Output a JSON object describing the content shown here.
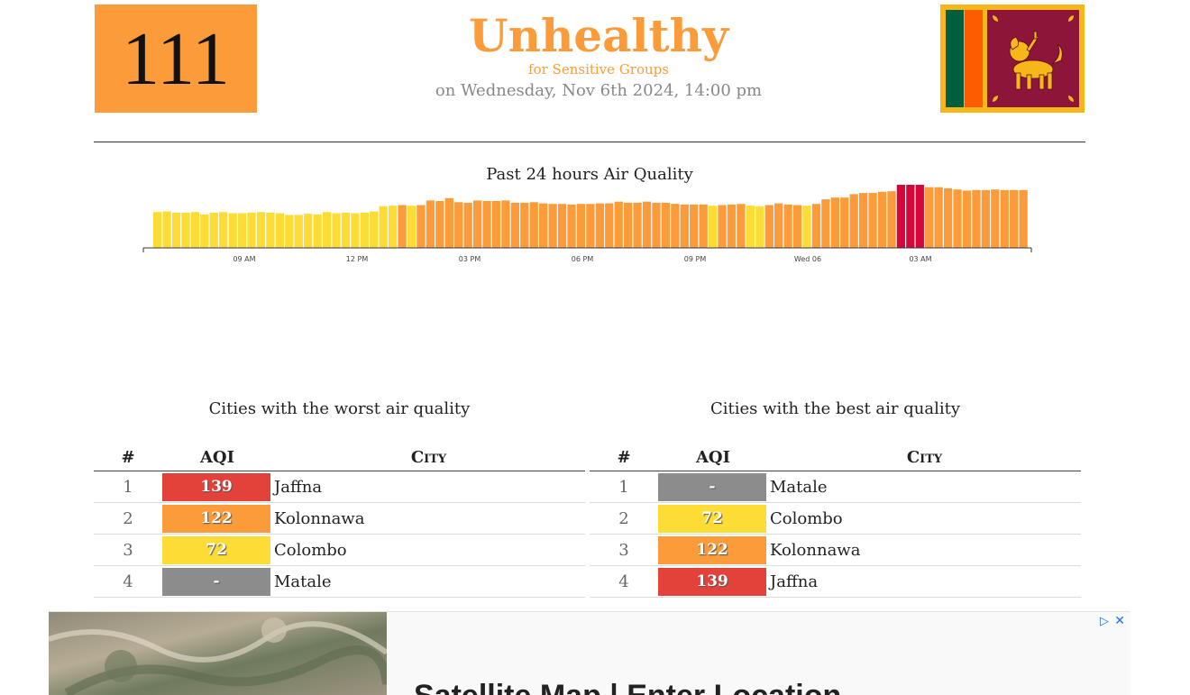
{
  "current": {
    "aqi": "111",
    "status": "Unhealthy",
    "status_sub": "for Sensitive Groups",
    "timestamp": "on Wednesday, Nov 6th 2024, 14:00 pm",
    "color": "#fb9b39"
  },
  "flag": {
    "icon": "sri-lanka-flag-icon",
    "colors": {
      "border": "#f7b718",
      "green": "#005f3f",
      "orange": "#ff5b00",
      "maroon": "#8d153a",
      "lion": "#f7b718"
    }
  },
  "chart_data": {
    "type": "bar",
    "title": "Past 24 hours Air Quality",
    "tick_labels": [
      "09 AM",
      "12 PM",
      "03 PM",
      "06 PM",
      "09 PM",
      "Wed 06",
      "03 AM"
    ],
    "values": [
      62,
      63,
      61,
      61,
      62,
      58,
      61,
      62,
      60,
      60,
      61,
      62,
      61,
      60,
      57,
      57,
      59,
      58,
      62,
      60,
      61,
      60,
      61,
      63,
      72,
      73,
      74,
      73,
      74,
      82,
      81,
      86,
      79,
      78,
      82,
      81,
      81,
      82,
      78,
      78,
      79,
      77,
      76,
      76,
      75,
      76,
      76,
      77,
      77,
      80,
      78,
      78,
      80,
      78,
      78,
      76,
      75,
      75,
      75,
      73,
      74,
      75,
      76,
      73,
      72,
      74,
      77,
      75,
      74,
      73,
      76,
      84,
      87,
      87,
      93,
      95,
      95,
      97,
      98,
      114,
      112,
      110,
      105,
      105,
      103,
      101,
      99,
      100,
      100,
      101,
      100,
      100,
      100
    ],
    "colors": {
      "moderate": "#fddd35",
      "usg": "#fb9b39",
      "unhealthy": "#d4063b"
    },
    "ylim": [
      0,
      120
    ]
  },
  "worst": {
    "title": "Cities with the worst air quality",
    "headers": {
      "rank": "#",
      "aqi": "AQI",
      "city": "City"
    },
    "rows": [
      {
        "rank": "1",
        "aqi": "139",
        "city": "Jaffna",
        "color": "#e2423a"
      },
      {
        "rank": "2",
        "aqi": "122",
        "city": "Kolonnawa",
        "color": "#fb9b39"
      },
      {
        "rank": "3",
        "aqi": "72",
        "city": "Colombo",
        "color": "#fddd35"
      },
      {
        "rank": "4",
        "aqi": "-",
        "city": "Matale",
        "color": "#8c8c8c"
      }
    ]
  },
  "best": {
    "title": "Cities with the best air quality",
    "headers": {
      "rank": "#",
      "aqi": "AQI",
      "city": "City"
    },
    "rows": [
      {
        "rank": "1",
        "aqi": "-",
        "city": "Matale",
        "color": "#8c8c8c"
      },
      {
        "rank": "2",
        "aqi": "72",
        "city": "Colombo",
        "color": "#fddd35"
      },
      {
        "rank": "3",
        "aqi": "122",
        "city": "Kolonnawa",
        "color": "#fb9b39"
      },
      {
        "rank": "4",
        "aqi": "139",
        "city": "Jaffna",
        "color": "#e2423a"
      }
    ]
  },
  "ad": {
    "headline": "Satellite Map | Enter Location",
    "choices_icon": "adchoices-icon",
    "close_icon": "close-icon"
  }
}
